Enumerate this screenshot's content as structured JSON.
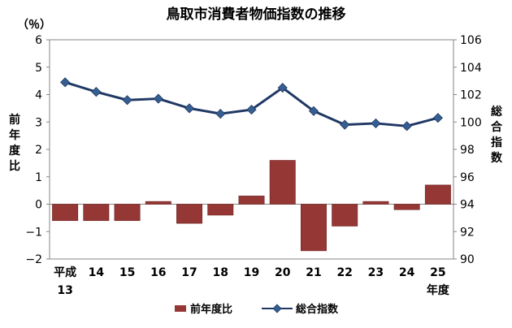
{
  "chart_data": {
    "type": "bar+line",
    "title": "鳥取市消費者物価指数の推移",
    "categories": [
      "平成13",
      "14",
      "15",
      "16",
      "17",
      "18",
      "19",
      "20",
      "21",
      "22",
      "23",
      "24",
      "25"
    ],
    "category_label_lines": [
      [
        "平成",
        "13"
      ],
      [
        "14"
      ],
      [
        "15"
      ],
      [
        "16"
      ],
      [
        "17"
      ],
      [
        "18"
      ],
      [
        "19"
      ],
      [
        "20"
      ],
      [
        "21"
      ],
      [
        "22"
      ],
      [
        "23"
      ],
      [
        "24"
      ],
      [
        "25",
        "年度"
      ]
    ],
    "left_axis": {
      "unit_label": "（％）",
      "title_chars": [
        "前",
        "年",
        "度",
        "比"
      ],
      "range": [
        -2,
        6
      ],
      "ticks": [
        "6",
        "5",
        "4",
        "3",
        "2",
        "1",
        "0",
        "−1",
        "−2"
      ],
      "tick_values": [
        6,
        5,
        4,
        3,
        2,
        1,
        0,
        -1,
        -2
      ]
    },
    "right_axis": {
      "title_chars": [
        "総",
        "合",
        "指",
        "数"
      ],
      "range": [
        90,
        106
      ],
      "ticks": [
        "106",
        "104",
        "102",
        "100",
        "98",
        "96",
        "94",
        "92",
        "90"
      ],
      "tick_values": [
        106,
        104,
        102,
        100,
        98,
        96,
        94,
        92,
        90
      ]
    },
    "series": [
      {
        "name": "前年度比",
        "type": "bar",
        "axis": "left",
        "color": "#953735",
        "values": [
          -0.6,
          -0.6,
          -0.6,
          0.1,
          -0.7,
          -0.4,
          0.3,
          1.6,
          -1.7,
          -0.8,
          0.1,
          -0.2,
          0.7
        ]
      },
      {
        "name": "総合指数",
        "type": "line",
        "axis": "right",
        "color": "#1f3864",
        "marker_color": "#365f91",
        "values": [
          102.9,
          102.2,
          101.6,
          101.7,
          101.0,
          100.6,
          100.9,
          102.5,
          100.8,
          99.8,
          99.9,
          99.7,
          100.3
        ]
      }
    ],
    "grid": false,
    "legend_position": "bottom"
  }
}
